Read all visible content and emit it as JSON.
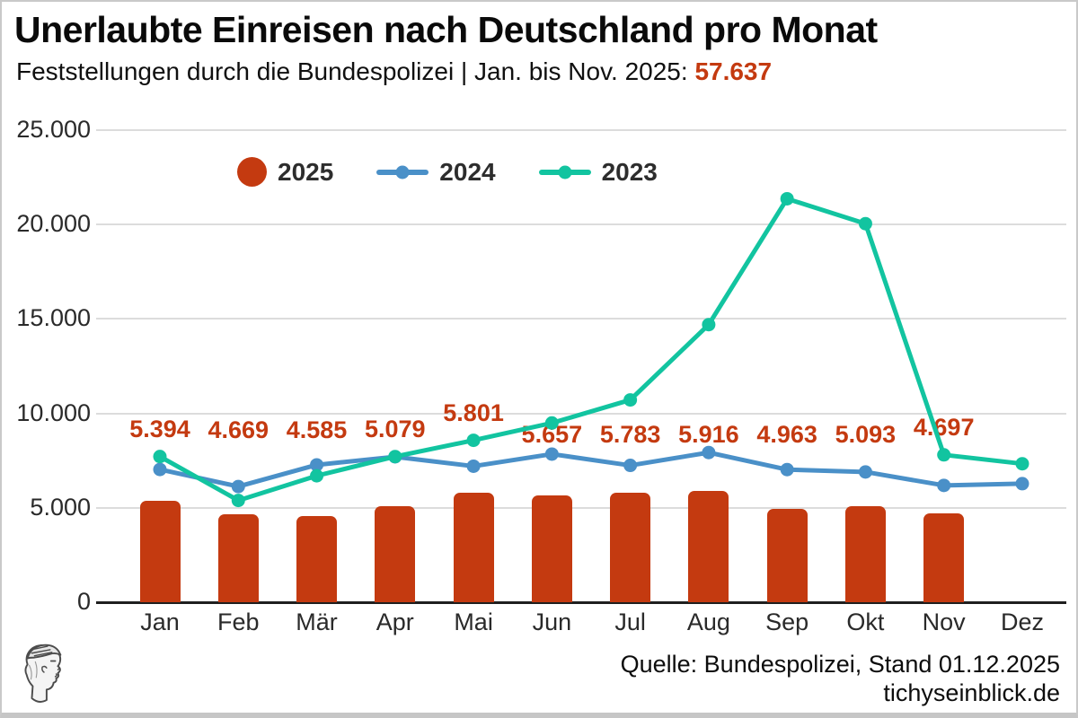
{
  "header": {
    "title": "Unerlaubte Einreisen nach Deutschland pro Monat",
    "subtitle_prefix": "Feststellungen durch die Bundespolizei | Jan. bis Nov. 2025:",
    "subtitle_total": "57.637"
  },
  "footer": {
    "source": "Quelle: Bundespolizei, Stand 01.12.2025",
    "website": "tichyseinblick.de",
    "logo": "tichys-einblick-hermes-head-logo"
  },
  "colors": {
    "bar_2025": "#c43a10",
    "line_2024": "#4a90c8",
    "line_2023": "#12c4a0",
    "data_label": "#c43a10",
    "grid": "#dcdcdc",
    "axis": "#1f1f1f",
    "text_dark": "#0a0a0a"
  },
  "chart_data": {
    "type": "bar+line combo",
    "categories": [
      "Jan",
      "Feb",
      "Mär",
      "Apr",
      "Mai",
      "Jun",
      "Jul",
      "Aug",
      "Sep",
      "Okt",
      "Nov",
      "Dez"
    ],
    "series": [
      {
        "name": "2025",
        "type": "bar",
        "color": "#c43a10",
        "values": [
          5394,
          4669,
          4585,
          5079,
          5801,
          5657,
          5783,
          5916,
          4963,
          5093,
          4697,
          null
        ],
        "labels": [
          "5.394",
          "4.669",
          "4.585",
          "5.079",
          "5.801",
          "5.657",
          "5.783",
          "5.916",
          "4.963",
          "5.093",
          "4.697",
          ""
        ]
      },
      {
        "name": "2024",
        "type": "line",
        "color": "#4a90c8",
        "values": [
          7029,
          6128,
          7274,
          7701,
          7203,
          7844,
          7246,
          7926,
          7024,
          6899,
          6187,
          6278
        ]
      },
      {
        "name": "2023",
        "type": "line",
        "color": "#12c4a0",
        "values": [
          7717,
          5391,
          6696,
          7714,
          8574,
          9491,
          10714,
          14701,
          21366,
          20047,
          7804,
          7334
        ]
      }
    ],
    "ylim": [
      0,
      25000
    ],
    "yticks": {
      "values": [
        0,
        5000,
        10000,
        15000,
        20000,
        25000
      ],
      "labels": [
        "0",
        "5.000",
        "10.000",
        "15.000",
        "20.000",
        "25.000"
      ]
    },
    "grid": "horizontal",
    "legend_position": "inside-top-left"
  }
}
